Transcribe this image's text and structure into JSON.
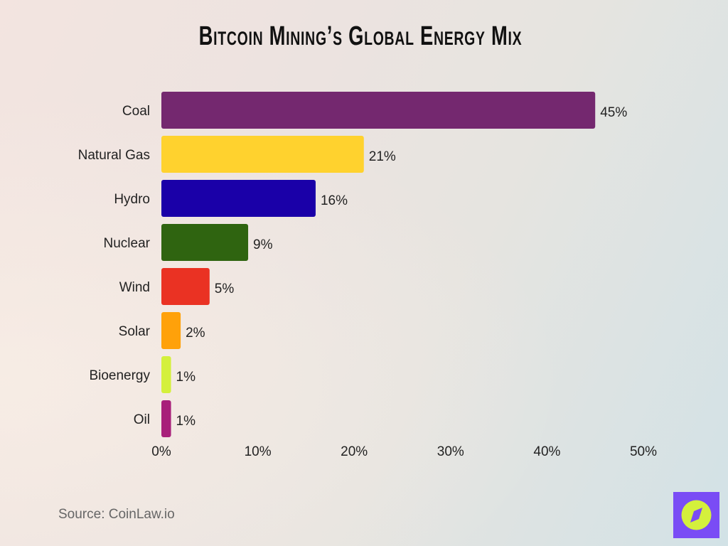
{
  "chart_data": {
    "type": "bar",
    "orientation": "horizontal",
    "title": "Bitcoin Mining’s Global Energy Mix",
    "categories": [
      "Coal",
      "Natural Gas",
      "Hydro",
      "Nuclear",
      "Wind",
      "Solar",
      "Bioenergy",
      "Oil"
    ],
    "values": [
      45,
      21,
      16,
      9,
      5,
      2,
      1,
      1
    ],
    "value_labels": [
      "45%",
      "21%",
      "16%",
      "9%",
      "5%",
      "2%",
      "1%",
      "1%"
    ],
    "colors": [
      "#74286f",
      "#ffd22e",
      "#1a00a8",
      "#2f6410",
      "#ea3223",
      "#ffa10a",
      "#d4f03c",
      "#a8207a"
    ],
    "xlim": [
      0,
      50
    ],
    "x_ticks": [
      0,
      10,
      20,
      30,
      40,
      50
    ],
    "x_tick_labels": [
      "0%",
      "10%",
      "20%",
      "30%",
      "40%",
      "50%"
    ],
    "xlabel": "",
    "ylabel": "",
    "grid": false
  },
  "source": "Source: CoinLaw.io",
  "logo": {
    "icon": "compass-icon",
    "bg": "#7a4cf5",
    "fg": "#d4f03c"
  }
}
